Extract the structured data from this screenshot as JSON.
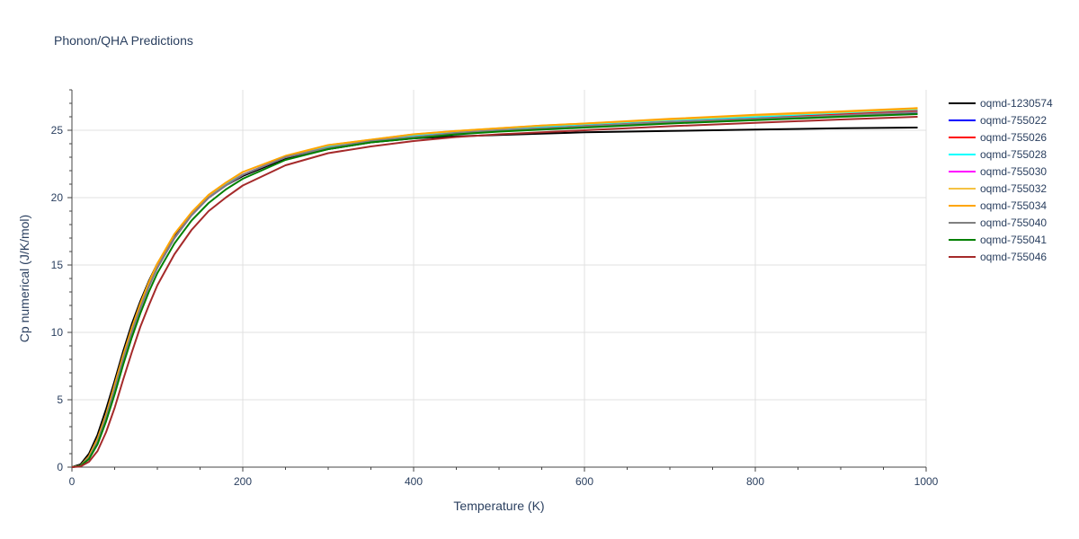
{
  "chart_data": {
    "type": "line",
    "title": "Phonon/QHA Predictions",
    "xlabel": "Temperature (K)",
    "ylabel": "Cp numerical (J/K/mol)",
    "xlim": [
      0,
      1000
    ],
    "ylim": [
      0,
      28
    ],
    "xticks": [
      0,
      200,
      400,
      600,
      800,
      1000
    ],
    "yticks": [
      0,
      5,
      10,
      15,
      20,
      25
    ],
    "grid": true,
    "legend_position": "right",
    "x": [
      0,
      10,
      20,
      30,
      40,
      50,
      60,
      70,
      80,
      90,
      100,
      120,
      140,
      160,
      180,
      200,
      250,
      300,
      350,
      400,
      450,
      500,
      550,
      600,
      700,
      800,
      900,
      990
    ],
    "series": [
      {
        "name": "oqmd-1230574",
        "color": "#000000",
        "values": [
          0,
          0.2,
          1.0,
          2.4,
          4.3,
          6.4,
          8.6,
          10.6,
          12.3,
          13.8,
          15.1,
          17.2,
          18.8,
          20.0,
          20.9,
          21.6,
          22.9,
          23.6,
          24.1,
          24.4,
          24.55,
          24.65,
          24.75,
          24.85,
          24.95,
          25.05,
          25.15,
          25.2
        ]
      },
      {
        "name": "oqmd-755022",
        "color": "#0000ff",
        "values": [
          0,
          0.1,
          0.7,
          1.9,
          3.7,
          5.8,
          8.0,
          10.0,
          11.8,
          13.4,
          14.8,
          17.0,
          18.7,
          20.0,
          20.9,
          21.7,
          23.0,
          23.7,
          24.2,
          24.5,
          24.75,
          24.95,
          25.1,
          25.25,
          25.55,
          25.8,
          26.05,
          26.3
        ]
      },
      {
        "name": "oqmd-755026",
        "color": "#ff0000",
        "values": [
          0,
          0.1,
          0.7,
          1.9,
          3.7,
          5.8,
          8.0,
          10.0,
          11.8,
          13.4,
          14.8,
          17.0,
          18.7,
          20.0,
          21.0,
          21.7,
          23.0,
          23.8,
          24.2,
          24.6,
          24.85,
          25.05,
          25.25,
          25.4,
          25.7,
          25.95,
          26.2,
          26.45
        ]
      },
      {
        "name": "oqmd-755028",
        "color": "#00ffff",
        "values": [
          0,
          0.1,
          0.7,
          1.9,
          3.7,
          5.8,
          8.0,
          10.0,
          11.8,
          13.4,
          14.8,
          17.0,
          18.7,
          20.0,
          21.0,
          21.7,
          23.0,
          23.8,
          24.2,
          24.6,
          24.85,
          25.05,
          25.25,
          25.45,
          25.75,
          26.0,
          26.3,
          26.55
        ]
      },
      {
        "name": "oqmd-755030",
        "color": "#ff00ff",
        "values": [
          0,
          0.1,
          0.7,
          1.9,
          3.7,
          5.8,
          8.0,
          10.0,
          11.8,
          13.4,
          14.8,
          17.0,
          18.7,
          20.0,
          20.9,
          21.7,
          23.0,
          23.7,
          24.2,
          24.5,
          24.8,
          25.0,
          25.15,
          25.3,
          25.6,
          25.85,
          26.1,
          26.35
        ]
      },
      {
        "name": "oqmd-755032",
        "color": "#f5c242",
        "values": [
          0,
          0.1,
          0.8,
          2.1,
          3.9,
          6.1,
          8.3,
          10.3,
          12.1,
          13.7,
          15.1,
          17.3,
          18.9,
          20.2,
          21.1,
          21.9,
          23.1,
          23.9,
          24.3,
          24.7,
          24.95,
          25.15,
          25.35,
          25.5,
          25.8,
          26.1,
          26.35,
          26.6
        ]
      },
      {
        "name": "oqmd-755034",
        "color": "#ffa500",
        "values": [
          0,
          0.1,
          0.8,
          2.1,
          3.9,
          6.1,
          8.3,
          10.3,
          12.1,
          13.7,
          15.1,
          17.3,
          18.9,
          20.2,
          21.1,
          21.9,
          23.1,
          23.9,
          24.3,
          24.7,
          24.95,
          25.15,
          25.35,
          25.5,
          25.85,
          26.15,
          26.4,
          26.65
        ]
      },
      {
        "name": "oqmd-755040",
        "color": "#808080",
        "values": [
          0,
          0.1,
          0.7,
          1.9,
          3.7,
          5.8,
          8.0,
          10.0,
          11.8,
          13.4,
          14.8,
          17.0,
          18.7,
          20.0,
          20.9,
          21.7,
          23.0,
          23.7,
          24.2,
          24.5,
          24.8,
          25.0,
          25.15,
          25.3,
          25.6,
          25.85,
          26.1,
          26.35
        ]
      },
      {
        "name": "oqmd-755041",
        "color": "#008000",
        "values": [
          0,
          0.1,
          0.6,
          1.7,
          3.4,
          5.4,
          7.6,
          9.6,
          11.4,
          13.0,
          14.4,
          16.6,
          18.3,
          19.6,
          20.6,
          21.4,
          22.8,
          23.6,
          24.1,
          24.4,
          24.7,
          24.9,
          25.05,
          25.2,
          25.5,
          25.75,
          26.0,
          26.2
        ]
      },
      {
        "name": "oqmd-755046",
        "color": "#a52a2a",
        "values": [
          0,
          0.05,
          0.4,
          1.2,
          2.6,
          4.4,
          6.5,
          8.5,
          10.4,
          12.0,
          13.5,
          15.8,
          17.6,
          19.0,
          20.0,
          20.9,
          22.4,
          23.3,
          23.8,
          24.2,
          24.5,
          24.7,
          24.85,
          25.0,
          25.3,
          25.55,
          25.8,
          26.0
        ]
      }
    ]
  }
}
